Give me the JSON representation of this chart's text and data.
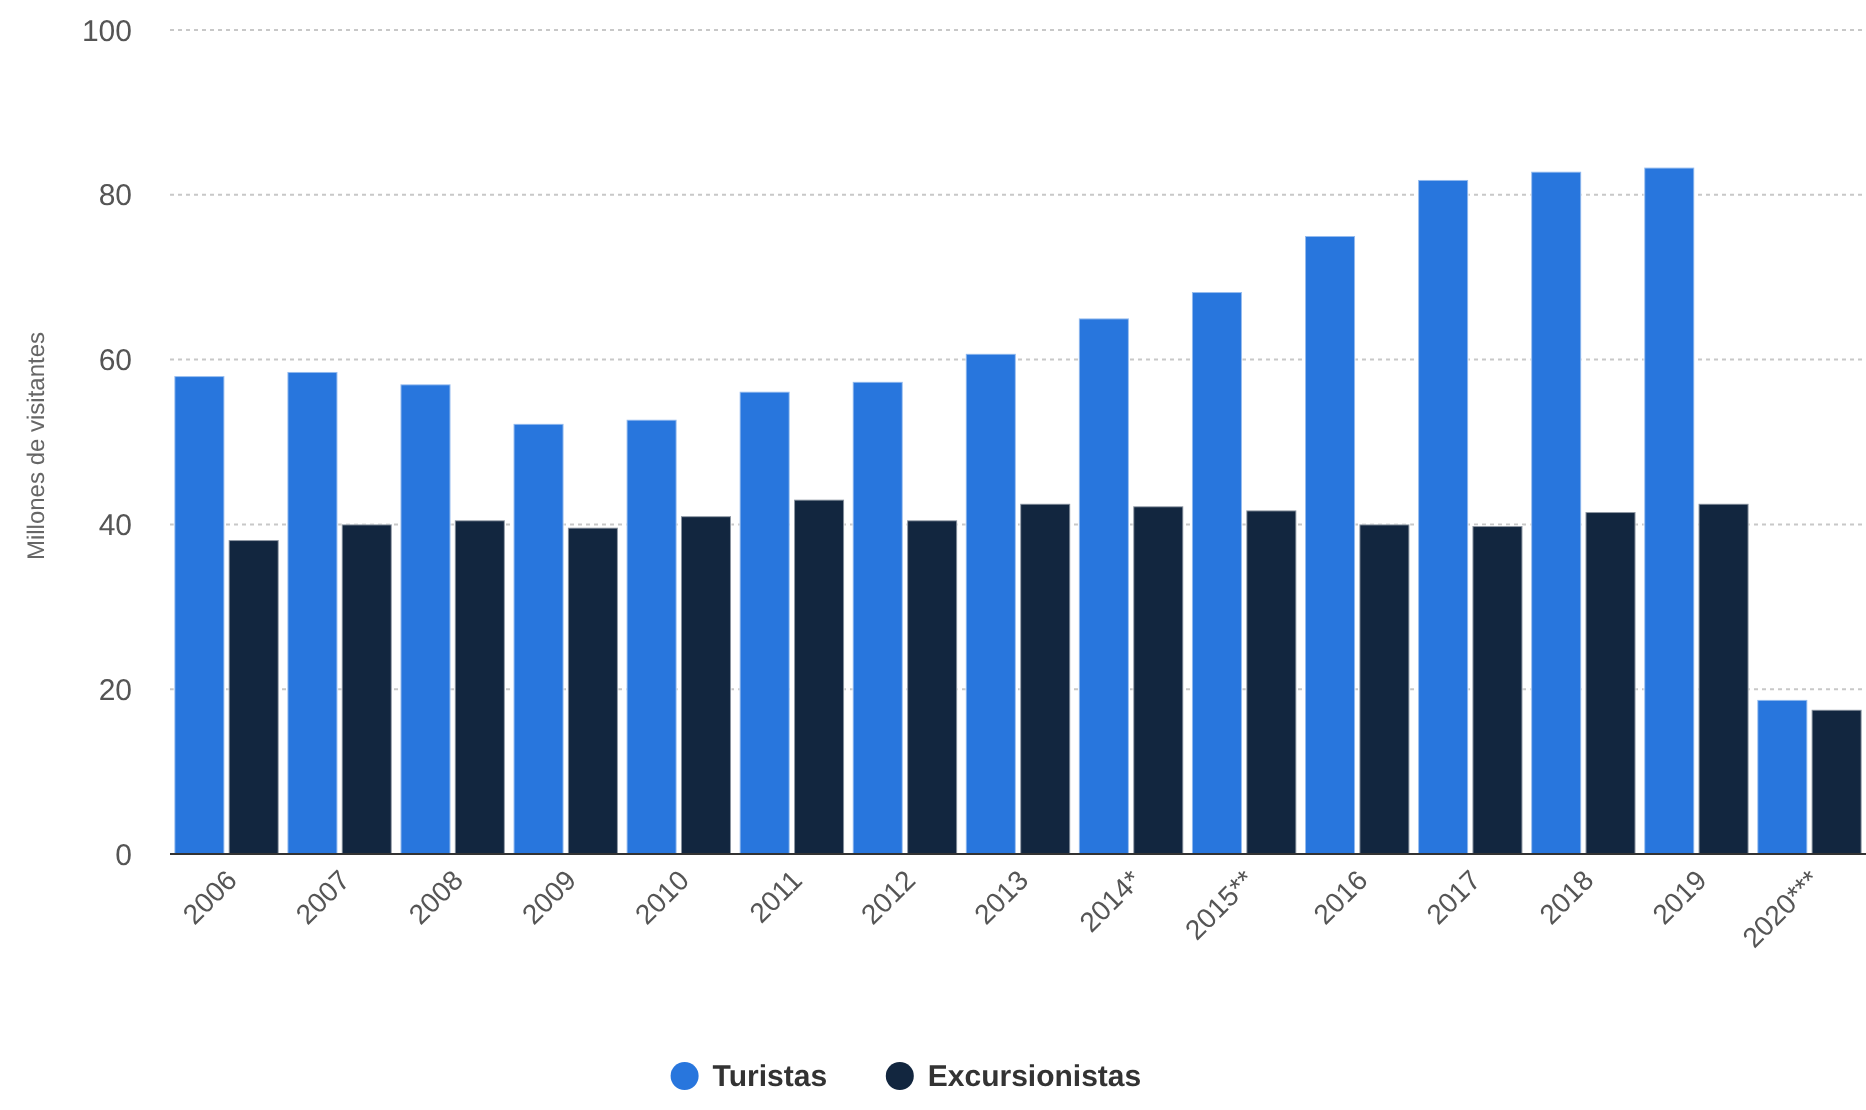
{
  "chart_data": {
    "type": "bar",
    "ylabel": "Millones de visitantes",
    "categories": [
      "2006",
      "2007",
      "2008",
      "2009",
      "2010",
      "2011",
      "2012",
      "2013",
      "2014*",
      "2015**",
      "2016",
      "2017",
      "2018",
      "2019",
      "2020***"
    ],
    "series": [
      {
        "name": "Turistas",
        "color": "#2876dd",
        "values": [
          58.0,
          58.5,
          57.0,
          52.2,
          52.7,
          56.1,
          57.3,
          60.7,
          65.0,
          68.2,
          75.0,
          81.8,
          82.8,
          83.3,
          18.7
        ]
      },
      {
        "name": "Excursionistas",
        "color": "#12263f",
        "values": [
          38.1,
          40.0,
          40.5,
          39.6,
          41.0,
          43.0,
          40.5,
          42.5,
          42.2,
          41.7,
          40.0,
          39.8,
          41.5,
          42.5,
          17.5
        ]
      }
    ],
    "ylim": [
      0,
      100
    ],
    "yticks": [
      0,
      20,
      40,
      60,
      80,
      100
    ],
    "grid": "y",
    "legend": "bottom"
  }
}
